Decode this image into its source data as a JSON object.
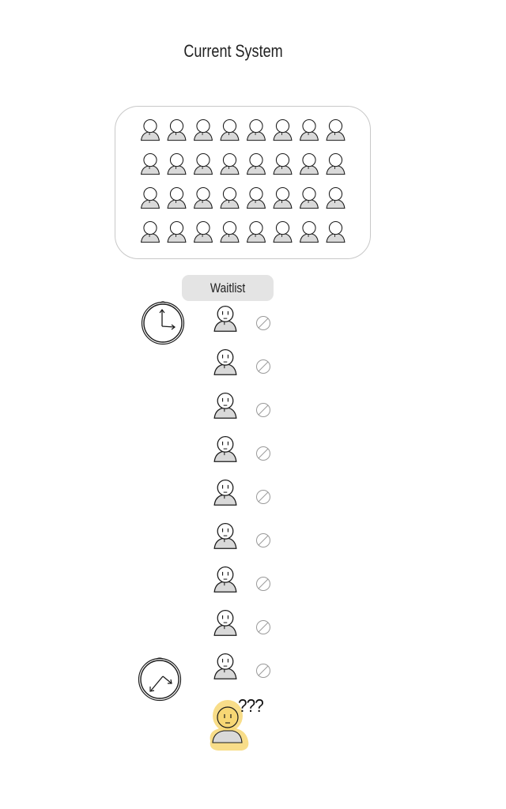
{
  "title": "Current System",
  "room": {
    "rows": 4,
    "cols": 8
  },
  "waitlist": {
    "label": "Waitlist",
    "count": 9,
    "denied_icon": "no-entry-icon",
    "clock_icon": "clock-icon"
  },
  "confused_person": {
    "label": "???",
    "highlight_color": "#f7d774"
  },
  "colors": {
    "stroke": "#1a1a1a",
    "skin": "#ffffff",
    "torso": "#d9d9d9",
    "denied": "#9a9a9a"
  }
}
